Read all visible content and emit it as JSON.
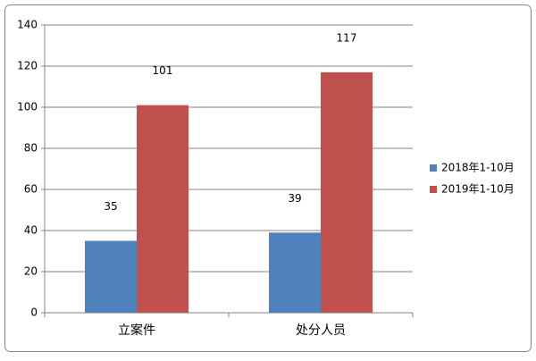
{
  "chart_data": {
    "type": "bar",
    "categories": [
      "立案件",
      "处分人员"
    ],
    "series": [
      {
        "name": "2018年1-10月",
        "color": "#4f81bd",
        "values": [
          35,
          39
        ]
      },
      {
        "name": "2019年1-10月",
        "color": "#c0504d",
        "values": [
          101,
          117
        ]
      }
    ],
    "ylim": [
      0,
      140
    ],
    "yticks": [
      0,
      20,
      40,
      60,
      80,
      100,
      120,
      140
    ],
    "grid": true,
    "legend": "right"
  }
}
